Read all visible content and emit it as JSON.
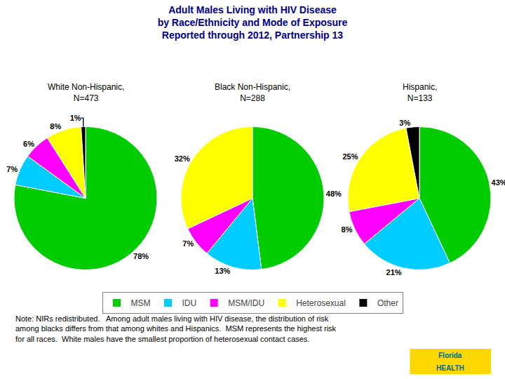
{
  "chart_data": {
    "type": "pie",
    "title": "Adult Males Living with HIV Disease\nby Race/Ethnicity and Mode of Exposure\nReported through 2012, Partnership 13",
    "categories": [
      "MSM",
      "IDU",
      "MSM/IDU",
      "Heterosexual",
      "Other"
    ],
    "colors": [
      "#00CC00",
      "#00CCFF",
      "#FF00FF",
      "#FFFF00",
      "#000000"
    ],
    "series": [
      {
        "name": "White Non-Hispanic,\nN=473",
        "values": [
          78,
          7,
          6,
          8,
          1
        ],
        "value_labels": [
          "78%",
          "7%",
          "6%",
          "8%",
          "1%"
        ]
      },
      {
        "name": "Black Non-Hispanic,\nN=288",
        "values": [
          48,
          13,
          7,
          32,
          0
        ],
        "value_labels": [
          "48%",
          "13%",
          "7%",
          "32%",
          null
        ]
      },
      {
        "name": "Hispanic,\nN=133",
        "values": [
          43,
          21,
          8,
          25,
          3
        ],
        "value_labels": [
          "43%",
          "21%",
          "8%",
          "25%",
          "3%"
        ]
      }
    ],
    "data_labels": true,
    "legend": "bottom",
    "annotations": [
      "Note: NIRs redistributed.   Among adult males living with HIV disease, the distribution of risk\namong blacks differs from that among whites and Hispanics.  MSM represents the highest risk\nfor all races.  White males have the smallest proportion of heterosexual contact cases.",
      "Florida",
      "HEALTH"
    ]
  }
}
